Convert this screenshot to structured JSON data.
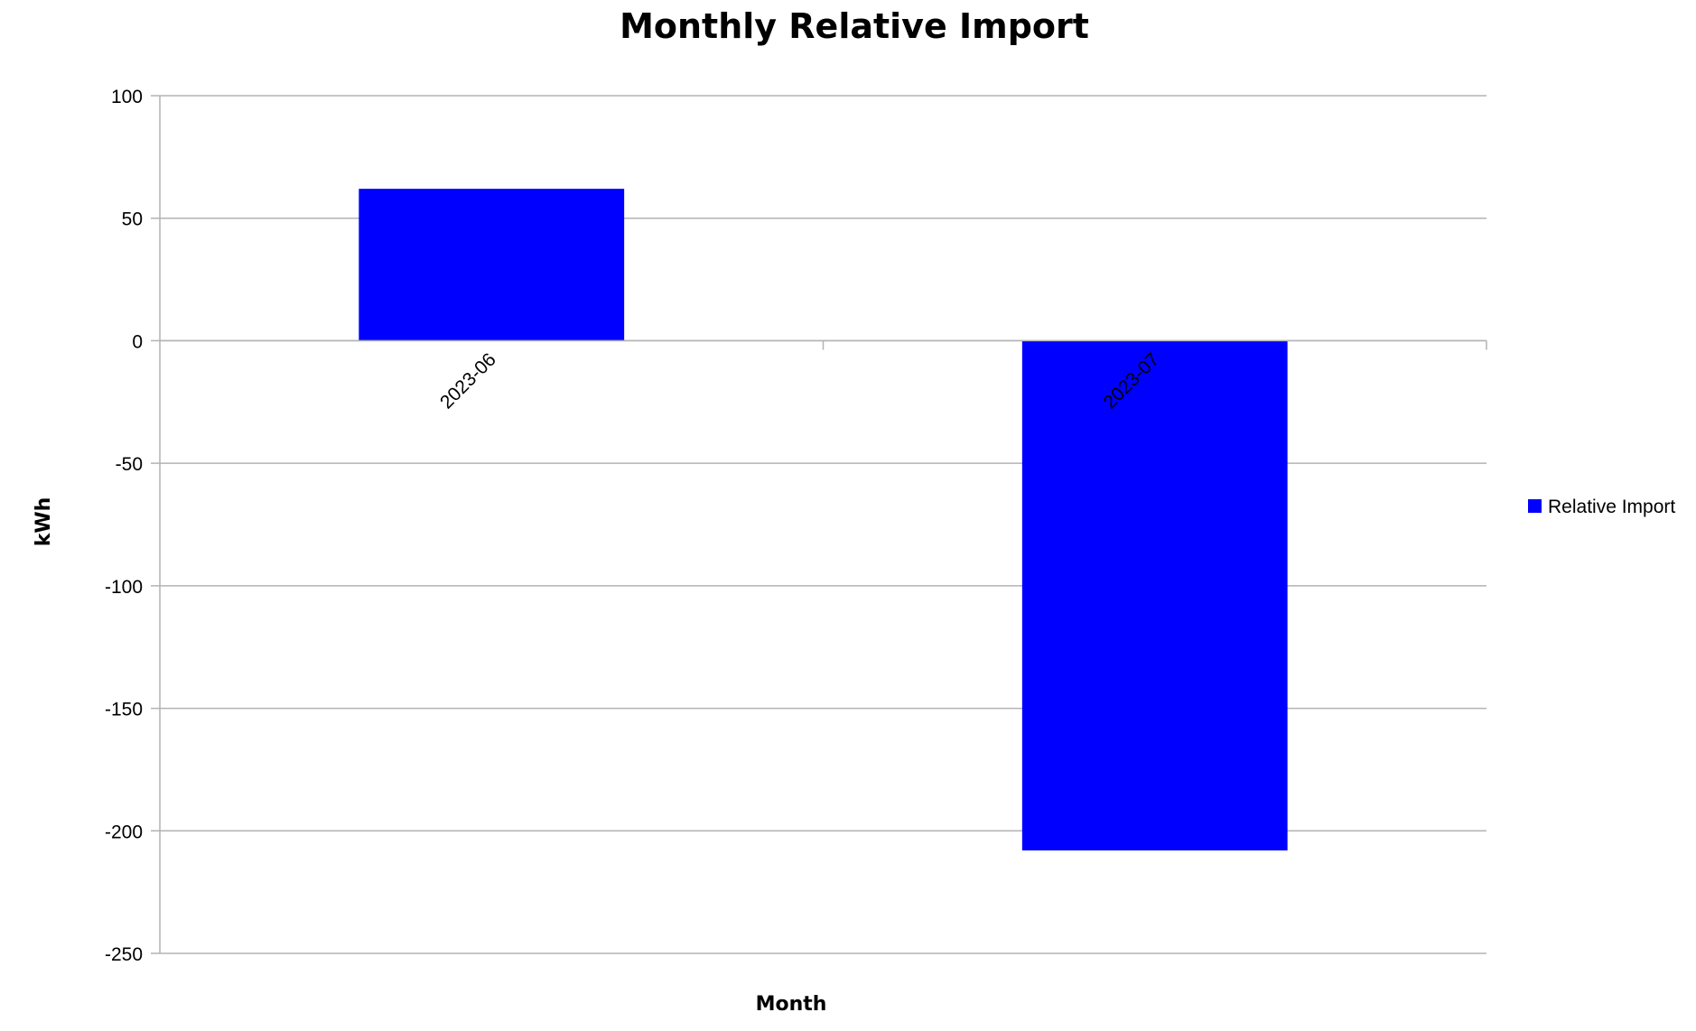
{
  "chart_data": {
    "type": "bar",
    "title": "Monthly Relative Import",
    "xlabel": "Month",
    "ylabel": "kWh",
    "categories": [
      "2023-06",
      "2023-07"
    ],
    "series": [
      {
        "name": "Relative Import",
        "values": [
          62,
          -208
        ],
        "color": "#0000ff"
      }
    ],
    "ylim": [
      -250,
      100
    ],
    "yticks": [
      100,
      50,
      0,
      -50,
      -100,
      -150,
      -200,
      -250
    ],
    "ytick_labels": [
      "100",
      "50",
      "0",
      "-50",
      "-100",
      "-150",
      "-200",
      "-250"
    ],
    "grid": true,
    "legend": "right"
  }
}
